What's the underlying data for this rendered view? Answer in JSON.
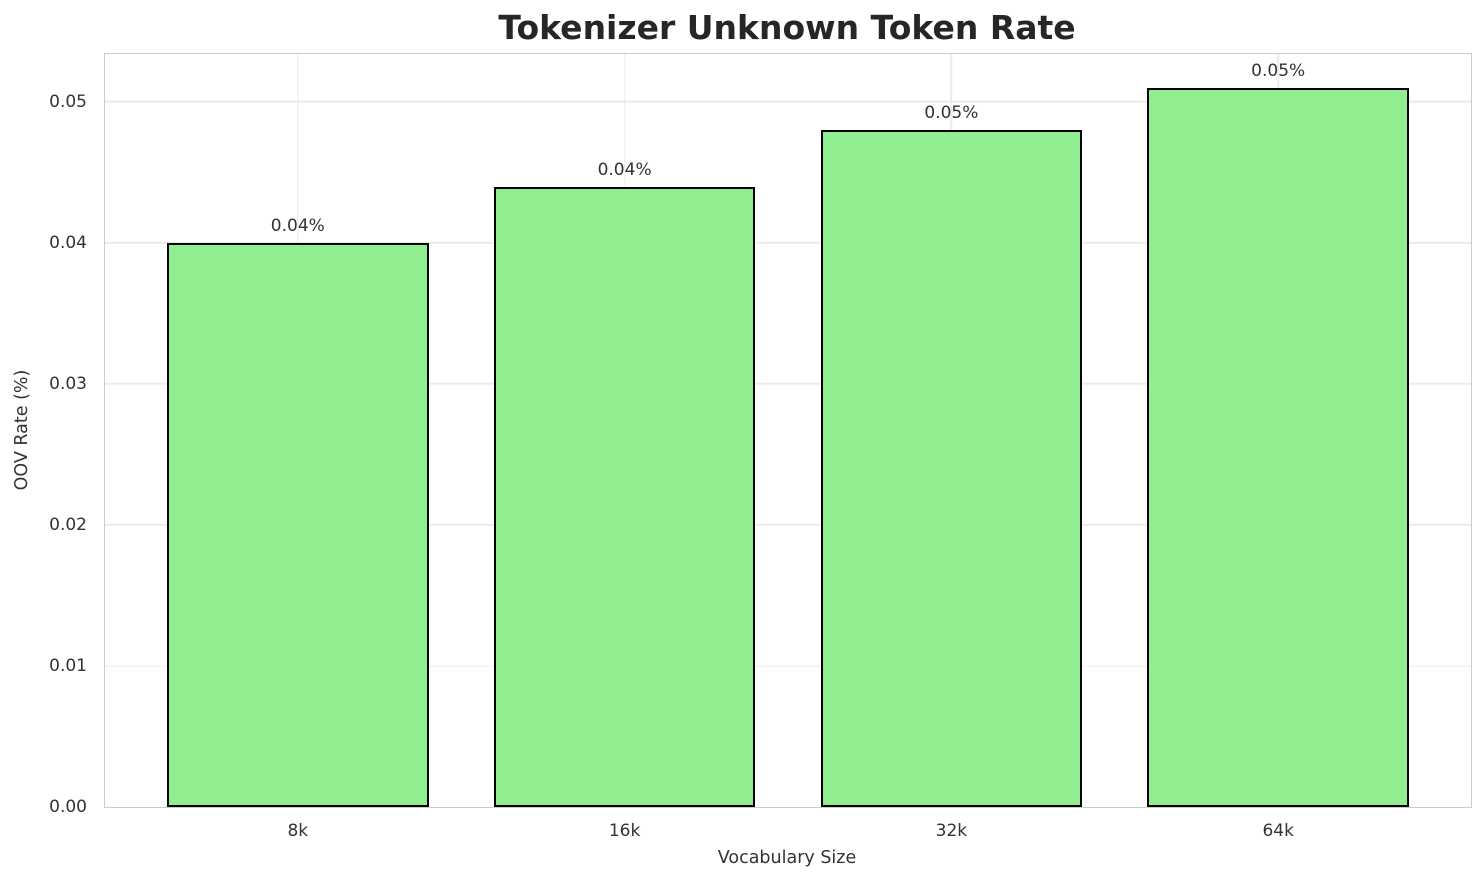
{
  "chart_data": {
    "type": "bar",
    "title": "Tokenizer Unknown Token Rate",
    "xlabel": "Vocabulary Size",
    "ylabel": "OOV Rate (%)",
    "categories": [
      "8k",
      "16k",
      "32k",
      "64k"
    ],
    "values": [
      0.04,
      0.044,
      0.048,
      0.051
    ],
    "bar_labels": [
      "0.04%",
      "0.04%",
      "0.05%",
      "0.05%"
    ],
    "yticks": [
      0.0,
      0.01,
      0.02,
      0.03,
      0.04,
      0.05
    ],
    "ytick_labels": [
      "0.00",
      "0.01",
      "0.02",
      "0.03",
      "0.04",
      "0.05"
    ],
    "ylim": [
      0,
      0.0534
    ],
    "xlim": [
      -0.59,
      3.59
    ],
    "bar_width": 0.8,
    "grid": true,
    "legend_position": "none",
    "colors": {
      "bar_fill": "#90EE90",
      "bar_edge": "#000000",
      "grid": "#ebebeb",
      "spine": "#cdcdcd",
      "text": "#333333",
      "title": "#262626",
      "background": "#ffffff"
    }
  }
}
